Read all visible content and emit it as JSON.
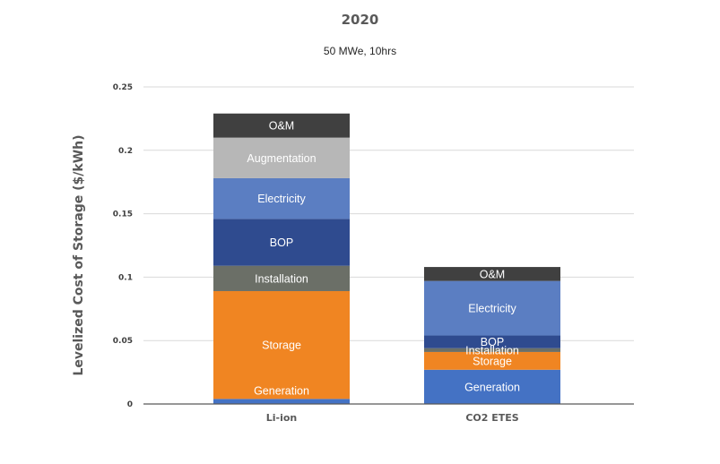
{
  "chart_data": {
    "type": "bar",
    "stacked": true,
    "title": "2020",
    "subtitle": "50 MWe, 10hrs",
    "ylabel": "Levelized Cost of Storage ($/kWh)",
    "xlabel": "",
    "ylim": [
      0,
      0.25
    ],
    "yticks": [
      0,
      0.05,
      0.1,
      0.15,
      0.2,
      0.25
    ],
    "ytick_labels": [
      "0",
      "0.05",
      "0.1",
      "0.15",
      "0.2",
      "0.25"
    ],
    "grid": true,
    "categories": [
      "Li-ion",
      "CO2 ETES"
    ],
    "series": [
      {
        "name": "Generation",
        "color": "#4472c4",
        "values": [
          0.004,
          0.027
        ],
        "label_positions": [
          "top",
          "middle"
        ]
      },
      {
        "name": "Storage",
        "color": "#f08522",
        "values": [
          0.085,
          0.014
        ],
        "label_positions": [
          "middle",
          "middle"
        ]
      },
      {
        "name": "Installation",
        "color": "#6b6f67",
        "values": [
          0.02,
          0.003
        ],
        "label_positions": [
          "middle",
          "middle"
        ]
      },
      {
        "name": "BOP",
        "color": "#2f4b8f",
        "values": [
          0.037,
          0.01
        ],
        "label_positions": [
          "middle",
          "middle"
        ]
      },
      {
        "name": "Electricity",
        "color": "#5b7ec2",
        "values": [
          0.032,
          0.043
        ],
        "label_positions": [
          "middle",
          "middle"
        ]
      },
      {
        "name": "Augmentation",
        "color": "#b7b7b7",
        "values": [
          0.032,
          0.0
        ],
        "label_positions": [
          "middle",
          "middle"
        ]
      },
      {
        "name": "O&M",
        "color": "#404040",
        "values": [
          0.019,
          0.011
        ],
        "label_positions": [
          "middle",
          "middle"
        ]
      }
    ]
  }
}
